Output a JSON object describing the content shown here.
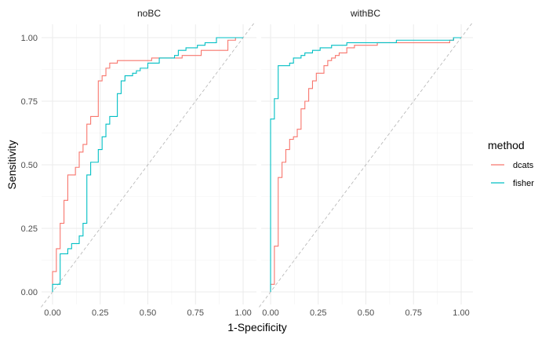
{
  "chart_data": {
    "type": "line",
    "xlabel": "1-Specificity",
    "ylabel": "Sensitivity",
    "xlim": [
      0,
      1
    ],
    "ylim": [
      0,
      1
    ],
    "x_ticks": [
      "0.00",
      "0.25",
      "0.50",
      "0.75",
      "1.00"
    ],
    "y_ticks": [
      "0.00",
      "0.25",
      "0.50",
      "0.75",
      "1.00"
    ],
    "grid": true,
    "reference_line": "diagonal, dashed",
    "legend": {
      "title": "method",
      "position": "right",
      "entries": [
        {
          "name": "dcats",
          "color": "#F8766D"
        },
        {
          "name": "fisher",
          "color": "#00BFC4"
        }
      ]
    },
    "panels": [
      {
        "title": "noBC",
        "series": [
          {
            "name": "dcats",
            "color": "#F8766D",
            "points": [
              [
                0,
                0
              ],
              [
                0,
                0.08
              ],
              [
                0.02,
                0.08
              ],
              [
                0.02,
                0.17
              ],
              [
                0.04,
                0.17
              ],
              [
                0.04,
                0.27
              ],
              [
                0.06,
                0.27
              ],
              [
                0.06,
                0.36
              ],
              [
                0.08,
                0.36
              ],
              [
                0.08,
                0.46
              ],
              [
                0.12,
                0.46
              ],
              [
                0.12,
                0.49
              ],
              [
                0.14,
                0.49
              ],
              [
                0.14,
                0.55
              ],
              [
                0.16,
                0.55
              ],
              [
                0.16,
                0.58
              ],
              [
                0.18,
                0.58
              ],
              [
                0.18,
                0.66
              ],
              [
                0.2,
                0.66
              ],
              [
                0.2,
                0.69
              ],
              [
                0.24,
                0.69
              ],
              [
                0.24,
                0.83
              ],
              [
                0.26,
                0.83
              ],
              [
                0.26,
                0.85
              ],
              [
                0.28,
                0.85
              ],
              [
                0.28,
                0.88
              ],
              [
                0.3,
                0.88
              ],
              [
                0.3,
                0.9
              ],
              [
                0.34,
                0.9
              ],
              [
                0.34,
                0.91
              ],
              [
                0.52,
                0.91
              ],
              [
                0.52,
                0.92
              ],
              [
                0.68,
                0.92
              ],
              [
                0.68,
                0.93
              ],
              [
                0.78,
                0.93
              ],
              [
                0.78,
                0.95
              ],
              [
                0.92,
                0.95
              ],
              [
                0.92,
                0.99
              ],
              [
                0.96,
                0.99
              ],
              [
                0.96,
                1
              ],
              [
                1,
                1
              ]
            ]
          },
          {
            "name": "fisher",
            "color": "#00BFC4",
            "points": [
              [
                0,
                0
              ],
              [
                0,
                0.03
              ],
              [
                0.04,
                0.03
              ],
              [
                0.04,
                0.15
              ],
              [
                0.08,
                0.15
              ],
              [
                0.08,
                0.17
              ],
              [
                0.1,
                0.17
              ],
              [
                0.1,
                0.19
              ],
              [
                0.14,
                0.19
              ],
              [
                0.14,
                0.22
              ],
              [
                0.16,
                0.22
              ],
              [
                0.16,
                0.27
              ],
              [
                0.18,
                0.27
              ],
              [
                0.18,
                0.46
              ],
              [
                0.2,
                0.46
              ],
              [
                0.2,
                0.51
              ],
              [
                0.24,
                0.51
              ],
              [
                0.24,
                0.56
              ],
              [
                0.26,
                0.56
              ],
              [
                0.26,
                0.61
              ],
              [
                0.28,
                0.61
              ],
              [
                0.28,
                0.66
              ],
              [
                0.3,
                0.66
              ],
              [
                0.3,
                0.69
              ],
              [
                0.34,
                0.69
              ],
              [
                0.34,
                0.78
              ],
              [
                0.36,
                0.78
              ],
              [
                0.36,
                0.83
              ],
              [
                0.38,
                0.83
              ],
              [
                0.38,
                0.85
              ],
              [
                0.42,
                0.85
              ],
              [
                0.42,
                0.86
              ],
              [
                0.44,
                0.86
              ],
              [
                0.44,
                0.87
              ],
              [
                0.46,
                0.87
              ],
              [
                0.46,
                0.88
              ],
              [
                0.5,
                0.88
              ],
              [
                0.5,
                0.9
              ],
              [
                0.56,
                0.9
              ],
              [
                0.56,
                0.92
              ],
              [
                0.64,
                0.92
              ],
              [
                0.64,
                0.93
              ],
              [
                0.66,
                0.93
              ],
              [
                0.66,
                0.95
              ],
              [
                0.7,
                0.95
              ],
              [
                0.7,
                0.96
              ],
              [
                0.76,
                0.96
              ],
              [
                0.76,
                0.97
              ],
              [
                0.8,
                0.97
              ],
              [
                0.8,
                0.98
              ],
              [
                0.86,
                0.98
              ],
              [
                0.86,
                1
              ],
              [
                1,
                1
              ]
            ]
          }
        ]
      },
      {
        "title": "withBC",
        "series": [
          {
            "name": "dcats",
            "color": "#F8766D",
            "points": [
              [
                0,
                0
              ],
              [
                0,
                0.03
              ],
              [
                0.02,
                0.03
              ],
              [
                0.02,
                0.18
              ],
              [
                0.04,
                0.18
              ],
              [
                0.04,
                0.45
              ],
              [
                0.06,
                0.45
              ],
              [
                0.06,
                0.51
              ],
              [
                0.08,
                0.51
              ],
              [
                0.08,
                0.56
              ],
              [
                0.1,
                0.56
              ],
              [
                0.1,
                0.6
              ],
              [
                0.12,
                0.6
              ],
              [
                0.12,
                0.61
              ],
              [
                0.14,
                0.61
              ],
              [
                0.14,
                0.64
              ],
              [
                0.16,
                0.64
              ],
              [
                0.16,
                0.72
              ],
              [
                0.18,
                0.72
              ],
              [
                0.18,
                0.75
              ],
              [
                0.2,
                0.75
              ],
              [
                0.2,
                0.8
              ],
              [
                0.22,
                0.8
              ],
              [
                0.22,
                0.83
              ],
              [
                0.24,
                0.83
              ],
              [
                0.24,
                0.86
              ],
              [
                0.28,
                0.86
              ],
              [
                0.28,
                0.89
              ],
              [
                0.3,
                0.89
              ],
              [
                0.3,
                0.91
              ],
              [
                0.32,
                0.91
              ],
              [
                0.32,
                0.92
              ],
              [
                0.34,
                0.92
              ],
              [
                0.34,
                0.93
              ],
              [
                0.36,
                0.93
              ],
              [
                0.36,
                0.94
              ],
              [
                0.4,
                0.94
              ],
              [
                0.4,
                0.96
              ],
              [
                0.44,
                0.96
              ],
              [
                0.44,
                0.97
              ],
              [
                0.56,
                0.97
              ],
              [
                0.56,
                0.98
              ],
              [
                0.94,
                0.98
              ],
              [
                0.94,
                0.99
              ],
              [
                0.96,
                0.99
              ],
              [
                0.96,
                1
              ],
              [
                1,
                1
              ]
            ]
          },
          {
            "name": "fisher",
            "color": "#00BFC4",
            "points": [
              [
                0,
                0
              ],
              [
                0,
                0.68
              ],
              [
                0.02,
                0.68
              ],
              [
                0.02,
                0.76
              ],
              [
                0.04,
                0.76
              ],
              [
                0.04,
                0.89
              ],
              [
                0.1,
                0.89
              ],
              [
                0.1,
                0.9
              ],
              [
                0.12,
                0.9
              ],
              [
                0.12,
                0.92
              ],
              [
                0.16,
                0.92
              ],
              [
                0.16,
                0.93
              ],
              [
                0.18,
                0.93
              ],
              [
                0.18,
                0.94
              ],
              [
                0.22,
                0.94
              ],
              [
                0.22,
                0.95
              ],
              [
                0.26,
                0.95
              ],
              [
                0.26,
                0.96
              ],
              [
                0.32,
                0.96
              ],
              [
                0.32,
                0.97
              ],
              [
                0.4,
                0.97
              ],
              [
                0.4,
                0.98
              ],
              [
                0.66,
                0.98
              ],
              [
                0.66,
                0.99
              ],
              [
                0.96,
                0.99
              ],
              [
                0.96,
                1
              ],
              [
                1,
                1
              ]
            ]
          }
        ]
      }
    ]
  }
}
